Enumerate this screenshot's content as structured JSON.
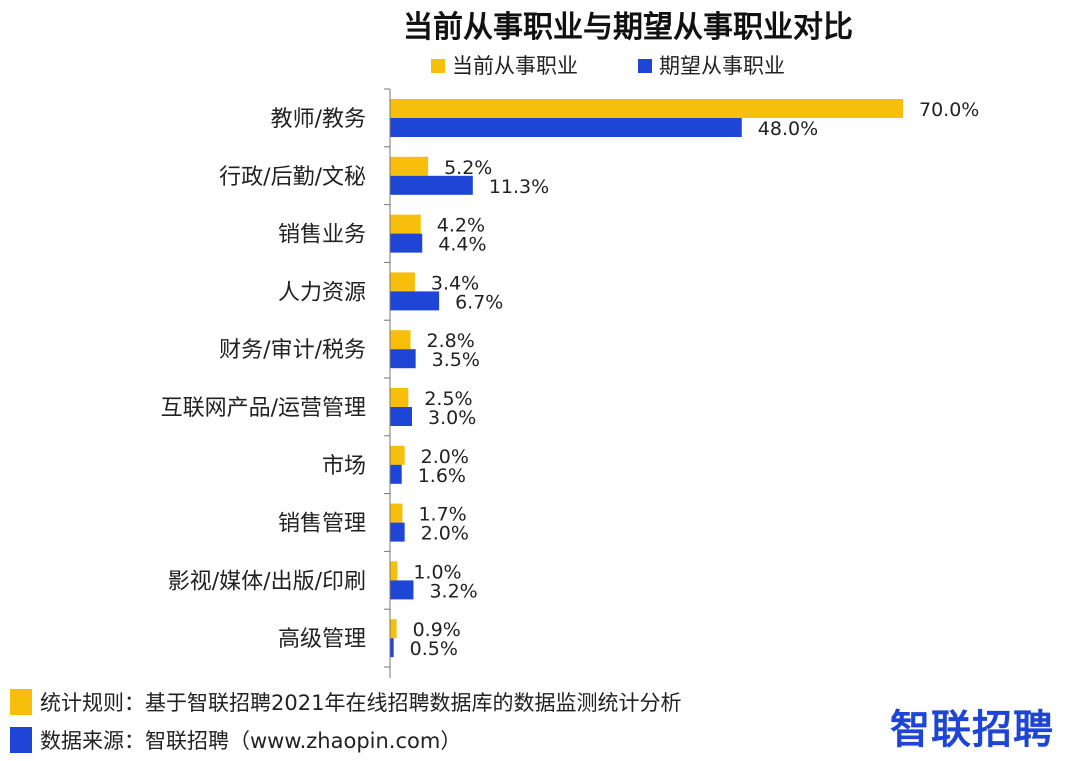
{
  "chart_data": {
    "type": "bar",
    "orientation": "horizontal",
    "title": "当前从事职业与期望从事职业对比",
    "categories": [
      "教师/教务",
      "行政/后勤/文秘",
      "销售业务",
      "人力资源",
      "财务/审计/税务",
      "互联网产品/运营管理",
      "市场",
      "销售管理",
      "影视/媒体/出版/印刷",
      "高级管理"
    ],
    "series": [
      {
        "name": "当前从事职业",
        "color": "#f7bf0b",
        "values": [
          70.0,
          5.2,
          4.2,
          3.4,
          2.8,
          2.5,
          2.0,
          1.7,
          1.0,
          0.9
        ],
        "labels": [
          "70.0%",
          "5.2%",
          "4.2%",
          "3.4%",
          "2.8%",
          "2.5%",
          "2.0%",
          "1.7%",
          "1.0%",
          "0.9%"
        ]
      },
      {
        "name": "期望从事职业",
        "color": "#1f45d6",
        "values": [
          48.0,
          11.3,
          4.4,
          6.7,
          3.5,
          3.0,
          1.6,
          2.0,
          3.2,
          0.5
        ],
        "labels": [
          "48.0%",
          "11.3%",
          "4.4%",
          "6.7%",
          "3.5%",
          "3.0%",
          "1.6%",
          "2.0%",
          "3.2%",
          "0.5%"
        ]
      }
    ],
    "xlim": [
      0,
      70
    ],
    "legend_position": "top",
    "grid": false
  },
  "footer": {
    "rule_text": "统计规则：基于智联招聘2021年在线招聘数据库的数据监测统计分析",
    "source_text": "数据来源：智联招聘（www.zhaopin.com）",
    "rule_color": "#f7bf0b",
    "source_color": "#1f45d6"
  },
  "logo": {
    "text": "智联招聘",
    "color": "#1f45d6"
  }
}
